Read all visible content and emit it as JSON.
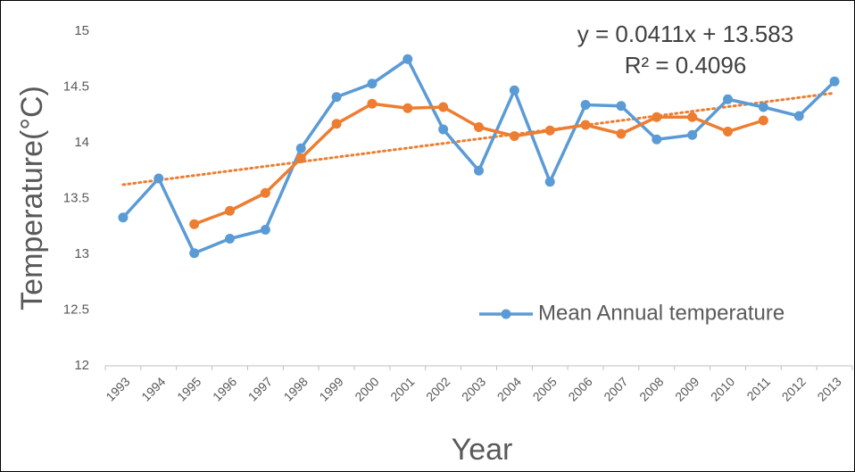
{
  "chart_data": {
    "type": "line",
    "y_label": "Temperature(°C)",
    "x_label": "Year",
    "categories": [
      "1993",
      "1994",
      "1995",
      "1996",
      "1997",
      "1998",
      "1999",
      "2000",
      "2001",
      "2002",
      "2003",
      "2004",
      "2005",
      "2006",
      "2007",
      "2008",
      "2009",
      "2010",
      "2011",
      "2012",
      "2013"
    ],
    "series": [
      {
        "name": "Mean Annual temperature",
        "color": "#5b9bd5",
        "values": [
          13.33,
          13.68,
          13.01,
          13.14,
          13.22,
          13.95,
          14.41,
          14.53,
          14.75,
          14.12,
          13.75,
          14.47,
          13.65,
          14.34,
          14.33,
          14.03,
          14.07,
          14.39,
          14.32,
          14.24,
          14.55
        ]
      },
      {
        "color": "#ed7d31",
        "values": [
          null,
          null,
          13.27,
          13.39,
          13.55,
          13.86,
          14.17,
          14.35,
          14.31,
          14.32,
          14.14,
          14.06,
          14.11,
          14.16,
          14.08,
          14.23,
          14.23,
          14.1,
          14.2,
          null,
          null
        ]
      }
    ],
    "trendline": {
      "equation": "y = 0.0411x + 13.583",
      "r_squared": "R² = 0.4096",
      "slope": 0.0411,
      "intercept": 13.583,
      "color": "#ed7d31"
    },
    "ylim": [
      12,
      15
    ],
    "yticks": [
      12,
      12.5,
      13,
      13.5,
      14,
      14.5,
      15
    ],
    "legend": "right"
  }
}
